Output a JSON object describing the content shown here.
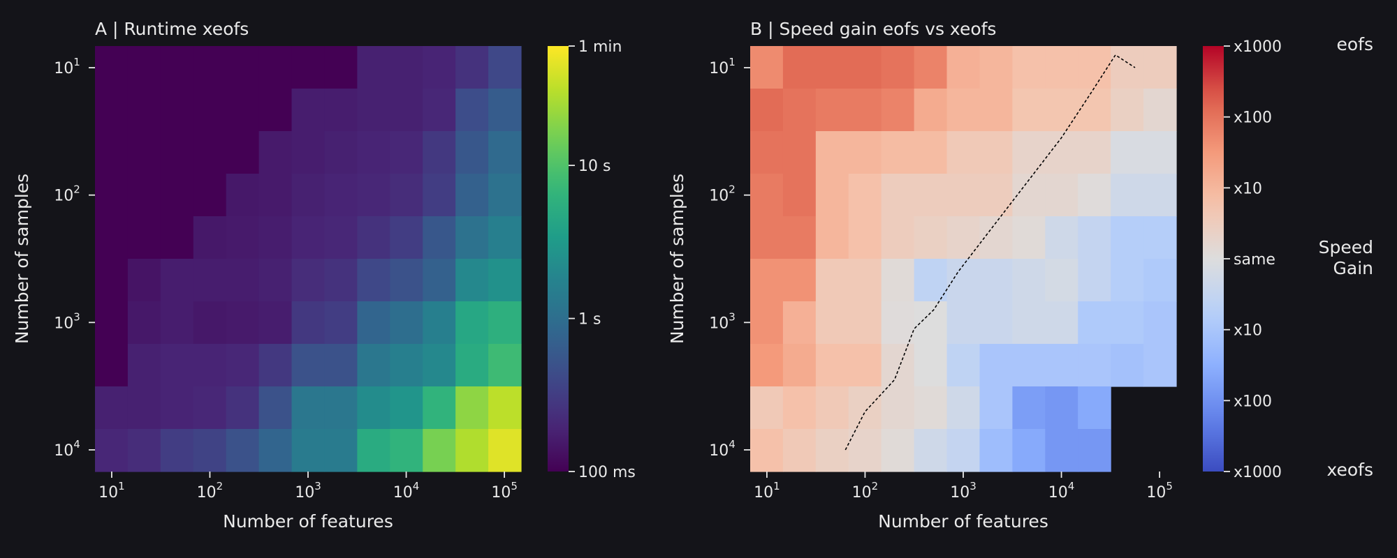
{
  "chart_data": [
    {
      "type": "heatmap",
      "title": "A | Runtime xeofs",
      "xlabel": "Number of features",
      "ylabel": "Number of samples",
      "x_ticks": [
        {
          "base": "10",
          "exp": "1"
        },
        {
          "base": "10",
          "exp": "2"
        },
        {
          "base": "10",
          "exp": "3"
        },
        {
          "base": "10",
          "exp": "4"
        },
        {
          "base": "10",
          "exp": "5"
        }
      ],
      "y_ticks": [
        {
          "base": "10",
          "exp": "1"
        },
        {
          "base": "10",
          "exp": "2"
        },
        {
          "base": "10",
          "exp": "3"
        },
        {
          "base": "10",
          "exp": "4"
        }
      ],
      "x_log10_range": [
        0.83,
        5.17
      ],
      "y_log10_range": [
        0.83,
        4.17
      ],
      "grid": false,
      "colormap": "viridis",
      "value_unit": "log10(seconds)",
      "color_range_log10_seconds": [
        -1,
        1.78
      ],
      "colorbar_ticks": [
        {
          "label": "1 min",
          "log10_seconds": 1.78
        },
        {
          "label": "10 s",
          "log10_seconds": 1.0
        },
        {
          "label": "1 s",
          "log10_seconds": 0.0
        },
        {
          "label": "100 ms",
          "log10_seconds": -1.0
        }
      ],
      "rows_log10_samples": [
        1.0,
        1.33,
        1.67,
        2.0,
        2.33,
        2.67,
        3.0,
        3.33,
        3.67,
        4.0
      ],
      "cols_log10_features": [
        1.0,
        1.33,
        1.67,
        2.0,
        2.33,
        2.67,
        3.0,
        3.33,
        3.67,
        4.0,
        4.33,
        4.67,
        5.0
      ],
      "values": [
        [
          -1.0,
          -1.0,
          -1.0,
          -1.0,
          -1.0,
          -1.0,
          -1.0,
          -1.0,
          -0.75,
          -0.75,
          -0.72,
          -0.6,
          -0.4
        ],
        [
          -1.0,
          -1.0,
          -1.0,
          -1.0,
          -1.0,
          -1.0,
          -0.78,
          -0.78,
          -0.75,
          -0.75,
          -0.7,
          -0.35,
          -0.2
        ],
        [
          -1.0,
          -1.0,
          -1.0,
          -1.0,
          -1.0,
          -0.8,
          -0.78,
          -0.75,
          -0.72,
          -0.7,
          -0.55,
          -0.25,
          -0.05
        ],
        [
          -1.0,
          -1.0,
          -1.0,
          -1.0,
          -0.82,
          -0.8,
          -0.75,
          -0.72,
          -0.7,
          -0.65,
          -0.5,
          -0.15,
          0.05
        ],
        [
          -1.0,
          -1.0,
          -1.0,
          -0.82,
          -0.8,
          -0.78,
          -0.72,
          -0.7,
          -0.6,
          -0.5,
          -0.25,
          0.05,
          0.2
        ],
        [
          -1.0,
          -0.85,
          -0.78,
          -0.78,
          -0.78,
          -0.75,
          -0.65,
          -0.6,
          -0.4,
          -0.3,
          -0.15,
          0.3,
          0.4
        ],
        [
          -1.0,
          -0.82,
          -0.78,
          -0.82,
          -0.8,
          -0.78,
          -0.55,
          -0.5,
          -0.1,
          0.0,
          0.2,
          0.65,
          0.75
        ],
        [
          -1.0,
          -0.75,
          -0.72,
          -0.72,
          -0.7,
          -0.55,
          -0.3,
          -0.3,
          0.1,
          0.2,
          0.3,
          0.7,
          0.9
        ],
        [
          -0.75,
          -0.75,
          -0.72,
          -0.7,
          -0.6,
          -0.3,
          0.1,
          0.1,
          0.35,
          0.45,
          0.8,
          1.3,
          1.5
        ],
        [
          -0.7,
          -0.65,
          -0.5,
          -0.45,
          -0.3,
          -0.1,
          0.15,
          0.15,
          0.7,
          0.8,
          1.2,
          1.45,
          1.65
        ]
      ]
    },
    {
      "type": "heatmap",
      "title": "B | Speed gain eofs vs xeofs",
      "xlabel": "Number of features",
      "ylabel": "Number of samples",
      "x_ticks": [
        {
          "base": "10",
          "exp": "1"
        },
        {
          "base": "10",
          "exp": "2"
        },
        {
          "base": "10",
          "exp": "3"
        },
        {
          "base": "10",
          "exp": "4"
        },
        {
          "base": "10",
          "exp": "5"
        }
      ],
      "y_ticks": [
        {
          "base": "10",
          "exp": "1"
        },
        {
          "base": "10",
          "exp": "2"
        },
        {
          "base": "10",
          "exp": "3"
        },
        {
          "base": "10",
          "exp": "4"
        }
      ],
      "x_log10_range": [
        0.83,
        5.17
      ],
      "y_log10_range": [
        0.83,
        4.17
      ],
      "grid": false,
      "colormap": "coolwarm",
      "value_unit": "log10(speed gain, positive = eofs faster)",
      "color_range": [
        -3,
        3
      ],
      "colorbar_ticks": [
        {
          "label": "x1000",
          "value": 3
        },
        {
          "label": "x100",
          "value": 2
        },
        {
          "label": "x10",
          "value": 1
        },
        {
          "label": "same",
          "value": 0
        },
        {
          "label": "x10",
          "value": -1
        },
        {
          "label": "x100",
          "value": -2
        },
        {
          "label": "x1000",
          "value": -3
        }
      ],
      "colorbar_side_labels": {
        "top": "eofs",
        "middle": "Speed\nGain",
        "bottom": "xeofs"
      },
      "rows_log10_samples": [
        1.0,
        1.33,
        1.67,
        2.0,
        2.33,
        2.67,
        3.0,
        3.33,
        3.67,
        4.0
      ],
      "cols_log10_features": [
        1.0,
        1.33,
        1.67,
        2.0,
        2.33,
        2.67,
        3.0,
        3.33,
        3.67,
        4.0,
        4.33,
        4.67,
        5.0
      ],
      "values": [
        [
          1.7,
          2.1,
          2.1,
          2.1,
          2.0,
          1.8,
          1.1,
          1.0,
          0.8,
          0.8,
          0.8,
          0.5,
          0.5
        ],
        [
          2.1,
          2.0,
          1.9,
          1.9,
          1.8,
          1.2,
          1.0,
          1.0,
          0.7,
          0.7,
          0.7,
          0.4,
          0.2
        ],
        [
          2.0,
          2.0,
          1.0,
          1.0,
          0.9,
          0.9,
          0.6,
          0.6,
          0.3,
          0.3,
          0.3,
          -0.1,
          -0.1
        ],
        [
          1.9,
          2.0,
          1.0,
          0.8,
          0.5,
          0.5,
          0.5,
          0.5,
          0.2,
          0.2,
          0.05,
          -0.3,
          -0.3
        ],
        [
          1.9,
          1.9,
          1.0,
          0.8,
          0.5,
          0.4,
          0.3,
          0.2,
          0.1,
          -0.3,
          -0.5,
          -0.8,
          -0.8
        ],
        [
          1.6,
          1.6,
          0.6,
          0.6,
          0.1,
          -0.6,
          -0.4,
          -0.4,
          -0.3,
          -0.2,
          -0.5,
          -0.8,
          -0.9
        ],
        [
          1.6,
          1.1,
          0.6,
          0.6,
          0.05,
          0.0,
          -0.4,
          -0.4,
          -0.3,
          -0.3,
          -0.9,
          -0.9,
          -1.0
        ],
        [
          1.5,
          1.2,
          0.8,
          0.8,
          0.2,
          0.0,
          -0.6,
          -1.0,
          -1.0,
          -1.0,
          -1.0,
          -1.1,
          -1.0
        ],
        [
          0.6,
          0.8,
          0.6,
          0.4,
          0.2,
          0.1,
          -0.3,
          -1.0,
          -1.8,
          -1.9,
          -1.6,
          null,
          null
        ],
        [
          0.8,
          0.6,
          0.4,
          0.3,
          0.1,
          -0.3,
          -0.5,
          -1.2,
          -1.6,
          -1.9,
          -1.9,
          null,
          null
        ]
      ],
      "annotation_line": {
        "style": "dashed",
        "color": "#000000",
        "points_log10": [
          [
            1.8,
            4.0
          ],
          [
            2.0,
            3.7
          ],
          [
            2.3,
            3.45
          ],
          [
            2.5,
            3.05
          ],
          [
            2.7,
            2.9
          ],
          [
            2.95,
            2.6
          ],
          [
            3.25,
            2.3
          ],
          [
            3.65,
            1.9
          ],
          [
            4.0,
            1.55
          ],
          [
            4.3,
            1.2
          ],
          [
            4.55,
            0.9
          ],
          [
            4.75,
            1.0
          ]
        ]
      }
    }
  ]
}
